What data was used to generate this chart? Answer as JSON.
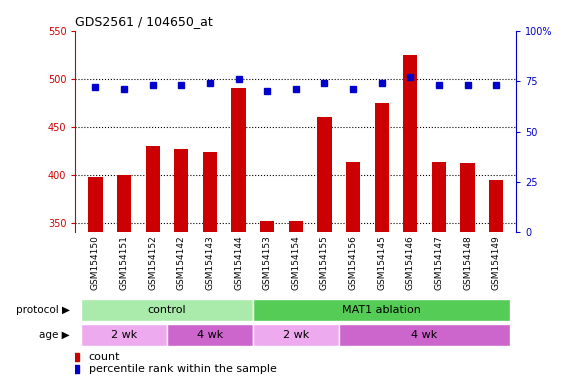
{
  "title": "GDS2561 / 104650_at",
  "samples": [
    "GSM154150",
    "GSM154151",
    "GSM154152",
    "GSM154142",
    "GSM154143",
    "GSM154144",
    "GSM154153",
    "GSM154154",
    "GSM154155",
    "GSM154156",
    "GSM154145",
    "GSM154146",
    "GSM154147",
    "GSM154148",
    "GSM154149"
  ],
  "counts": [
    398,
    400,
    430,
    427,
    424,
    490,
    352,
    352,
    460,
    413,
    475,
    525,
    413,
    412,
    395
  ],
  "percentiles": [
    72,
    71,
    73,
    73,
    74,
    76,
    70,
    71,
    74,
    71,
    74,
    77,
    73,
    73,
    73
  ],
  "ylim_left": [
    340,
    550
  ],
  "ylim_right": [
    0,
    100
  ],
  "yticks_left": [
    350,
    400,
    450,
    500,
    550
  ],
  "yticks_right": [
    0,
    25,
    50,
    75,
    100
  ],
  "bar_color": "#cc0000",
  "dot_color": "#0000cc",
  "protocol_groups": [
    {
      "label": "control",
      "start": 0,
      "end": 6,
      "color": "#aaeaaa"
    },
    {
      "label": "MAT1 ablation",
      "start": 6,
      "end": 15,
      "color": "#55cc55"
    }
  ],
  "age_groups": [
    {
      "label": "2 wk",
      "start": 0,
      "end": 3,
      "color": "#eeaaee"
    },
    {
      "label": "4 wk",
      "start": 3,
      "end": 6,
      "color": "#cc66cc"
    },
    {
      "label": "2 wk",
      "start": 6,
      "end": 9,
      "color": "#eeaaee"
    },
    {
      "label": "4 wk",
      "start": 9,
      "end": 15,
      "color": "#cc66cc"
    }
  ],
  "protocol_label": "protocol",
  "age_label": "age",
  "legend_count_label": "count",
  "legend_pct_label": "percentile rank within the sample",
  "xtick_bg": "#cccccc",
  "plot_bg": "#ffffff",
  "left_label_color": "#cc0000",
  "right_label_color": "#0000cc"
}
